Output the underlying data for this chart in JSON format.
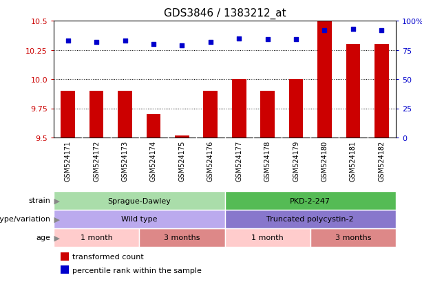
{
  "title": "GDS3846 / 1383212_at",
  "samples": [
    "GSM524171",
    "GSM524172",
    "GSM524173",
    "GSM524174",
    "GSM524175",
    "GSM524176",
    "GSM524177",
    "GSM524178",
    "GSM524179",
    "GSM524180",
    "GSM524181",
    "GSM524182"
  ],
  "transformed_count": [
    9.9,
    9.9,
    9.9,
    9.7,
    9.52,
    9.9,
    10.0,
    9.9,
    10.0,
    10.5,
    10.3,
    10.3
  ],
  "percentile_rank": [
    83,
    82,
    83,
    80,
    79,
    82,
    85,
    84,
    84,
    92,
    93,
    92
  ],
  "ylim_left": [
    9.5,
    10.5
  ],
  "yticks_left": [
    9.5,
    9.75,
    10.0,
    10.25,
    10.5
  ],
  "yticks_right": [
    0,
    25,
    50,
    75,
    100
  ],
  "bar_color": "#cc0000",
  "dot_color": "#0000cc",
  "annotation_rows": [
    {
      "label": "strain",
      "groups": [
        {
          "text": "Sprague-Dawley",
          "start": 0,
          "end": 5,
          "color": "#aaddaa"
        },
        {
          "text": "PKD-2-247",
          "start": 6,
          "end": 11,
          "color": "#55bb55"
        }
      ]
    },
    {
      "label": "genotype/variation",
      "groups": [
        {
          "text": "Wild type",
          "start": 0,
          "end": 5,
          "color": "#bbaaee"
        },
        {
          "text": "Truncated polycystin-2",
          "start": 6,
          "end": 11,
          "color": "#8877cc"
        }
      ]
    },
    {
      "label": "age",
      "groups": [
        {
          "text": "1 month",
          "start": 0,
          "end": 2,
          "color": "#ffcccc"
        },
        {
          "text": "3 months",
          "start": 3,
          "end": 5,
          "color": "#dd8888"
        },
        {
          "text": "1 month",
          "start": 6,
          "end": 8,
          "color": "#ffcccc"
        },
        {
          "text": "3 months",
          "start": 9,
          "end": 11,
          "color": "#dd8888"
        }
      ]
    }
  ],
  "legend_items": [
    {
      "color": "#cc0000",
      "label": "transformed count"
    },
    {
      "color": "#0000cc",
      "label": "percentile rank within the sample"
    }
  ],
  "bg_color": "#ffffff",
  "xtick_bg_color": "#cccccc"
}
